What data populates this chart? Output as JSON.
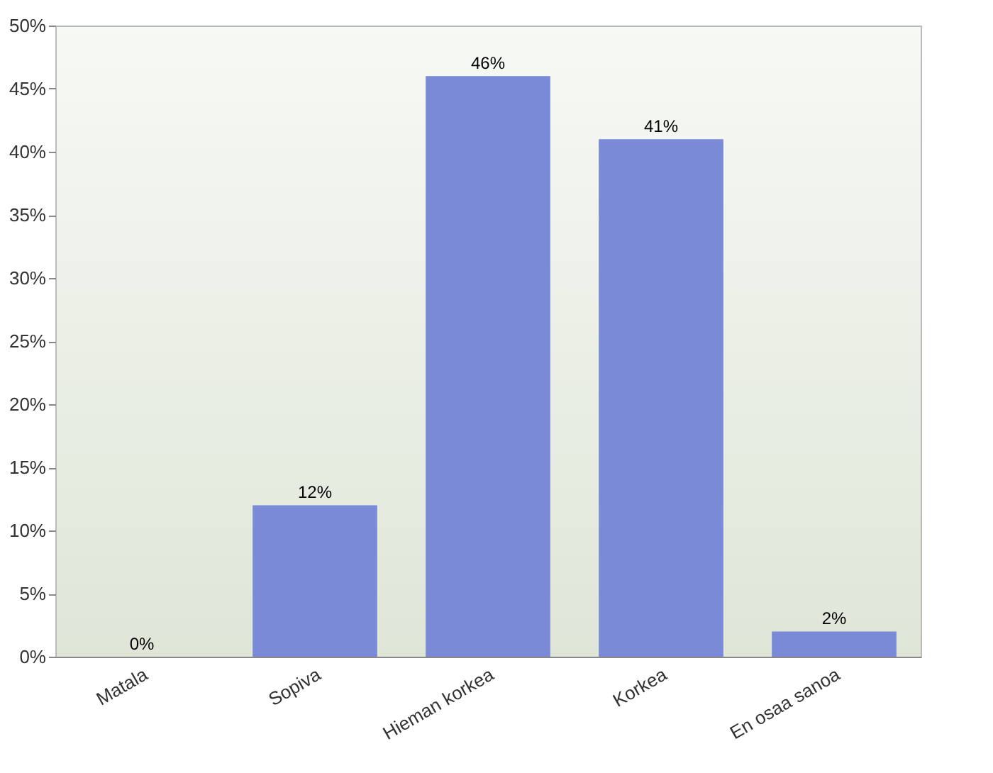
{
  "chart_data": {
    "type": "bar",
    "categories": [
      "Matala",
      "Sopiva",
      "Hieman korkea",
      "Korkea",
      "En osaa sanoa"
    ],
    "values": [
      0,
      12,
      46,
      41,
      2
    ],
    "value_labels": [
      "0%",
      "12%",
      "46%",
      "41%",
      "2%"
    ],
    "color": "#7b8ad6",
    "ylim": [
      0,
      50
    ],
    "yticks": [
      {
        "value": 0,
        "label": "0%"
      },
      {
        "value": 5,
        "label": "5%"
      },
      {
        "value": 10,
        "label": "10%"
      },
      {
        "value": 15,
        "label": "15%"
      },
      {
        "value": 20,
        "label": "20%"
      },
      {
        "value": 25,
        "label": "25%"
      },
      {
        "value": 30,
        "label": "30%"
      },
      {
        "value": 35,
        "label": "35%"
      },
      {
        "value": 40,
        "label": "40%"
      },
      {
        "value": 45,
        "label": "45%"
      },
      {
        "value": 50,
        "label": "50%"
      }
    ],
    "grid": false
  }
}
